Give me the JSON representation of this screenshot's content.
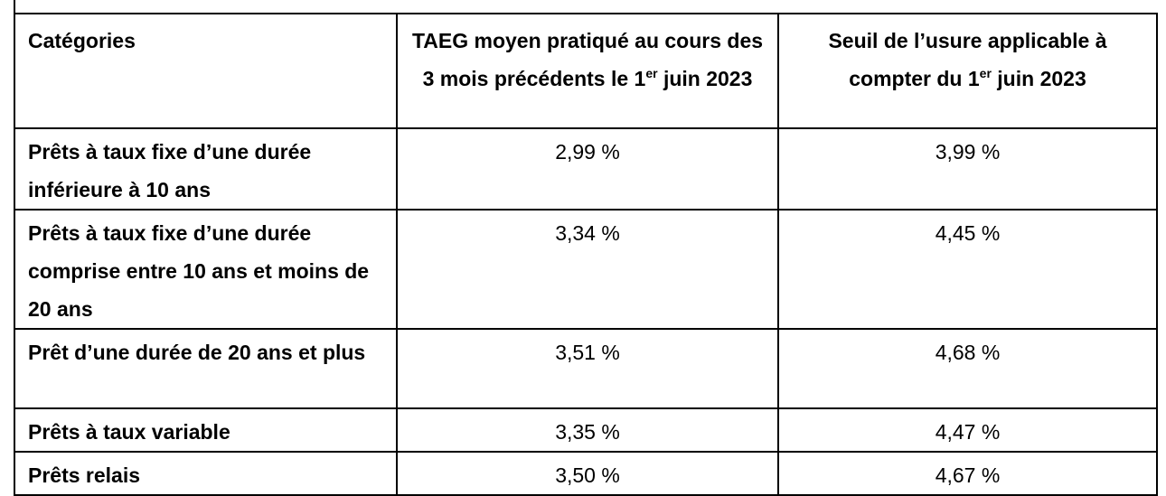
{
  "table": {
    "header": [
      {
        "text": "Catégories"
      },
      {
        "text": "TAEG moyen pratiqué au cours des 3 mois précédents le 1",
        "sup": "er",
        "after": " juin 2023"
      },
      {
        "text": "Seuil de l’usure applicable à compter du 1",
        "sup": "er",
        "after": " juin 2023"
      }
    ],
    "rows": [
      [
        "Prêts à taux fixe d’une durée inférieure à 10 ans",
        "2,99 %",
        "3,99 %"
      ],
      [
        "Prêts à taux fixe d’une durée comprise entre 10 ans et moins de 20 ans",
        "3,34 %",
        "4,45 %"
      ],
      [
        "Prêt d’une durée de 20 ans et plus",
        "3,51 %",
        "4,68 %"
      ],
      [
        "Prêts à taux variable",
        "3,35 %",
        "4,47 %"
      ],
      [
        "Prêts relais",
        "3,50 %",
        "4,67 %"
      ]
    ]
  }
}
